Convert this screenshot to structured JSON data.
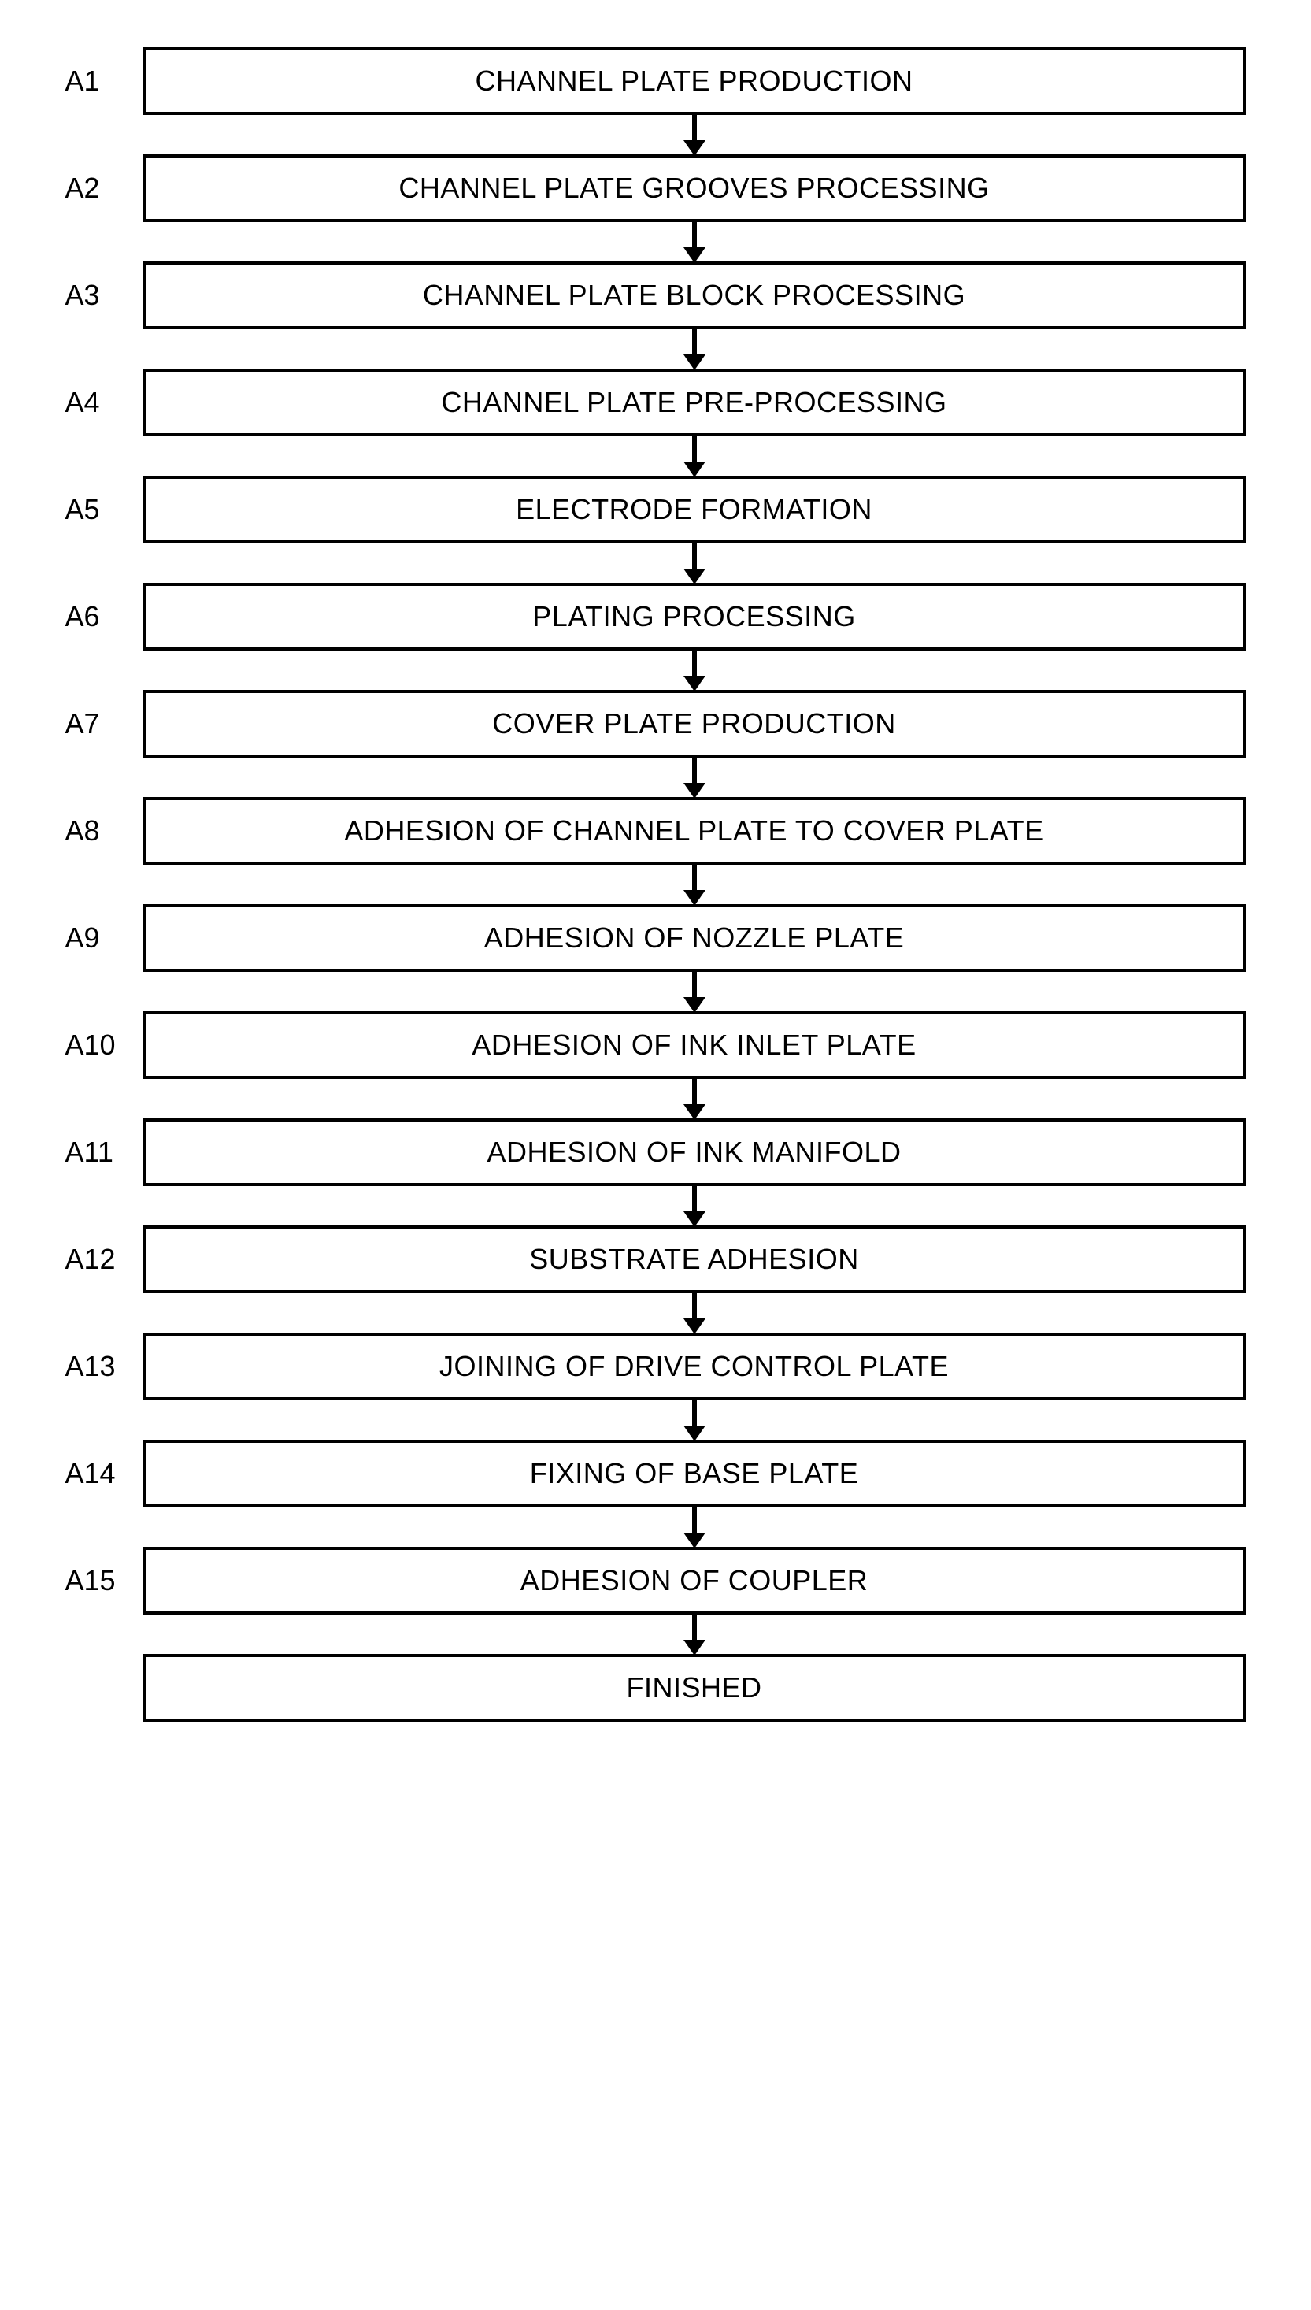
{
  "flowchart": {
    "type": "flowchart",
    "direction": "vertical",
    "background_color": "#ffffff",
    "box_border_color": "#000000",
    "box_border_width": 4,
    "box_fill_color": "#ffffff",
    "text_color": "#000000",
    "font_family": "Arial",
    "label_fontsize": 36,
    "box_fontsize": 36,
    "arrow_color": "#000000",
    "arrow_line_width": 6,
    "arrow_head_width": 28,
    "arrow_head_height": 20,
    "step_gap": 50,
    "steps": [
      {
        "id": "A1",
        "text": "CHANNEL PLATE PRODUCTION"
      },
      {
        "id": "A2",
        "text": "CHANNEL PLATE GROOVES PROCESSING"
      },
      {
        "id": "A3",
        "text": "CHANNEL PLATE BLOCK PROCESSING"
      },
      {
        "id": "A4",
        "text": "CHANNEL PLATE PRE-PROCESSING"
      },
      {
        "id": "A5",
        "text": "ELECTRODE FORMATION"
      },
      {
        "id": "A6",
        "text": "PLATING PROCESSING"
      },
      {
        "id": "A7",
        "text": "COVER PLATE PRODUCTION"
      },
      {
        "id": "A8",
        "text": "ADHESION OF CHANNEL PLATE TO COVER PLATE"
      },
      {
        "id": "A9",
        "text": "ADHESION OF NOZZLE PLATE"
      },
      {
        "id": "A10",
        "text": "ADHESION OF INK INLET PLATE"
      },
      {
        "id": "A11",
        "text": "ADHESION OF INK MANIFOLD"
      },
      {
        "id": "A12",
        "text": "SUBSTRATE ADHESION"
      },
      {
        "id": "A13",
        "text": "JOINING OF DRIVE CONTROL PLATE"
      },
      {
        "id": "A14",
        "text": "FIXING OF BASE PLATE"
      },
      {
        "id": "A15",
        "text": "ADHESION OF COUPLER"
      }
    ],
    "final": {
      "text": "FINISHED"
    }
  }
}
